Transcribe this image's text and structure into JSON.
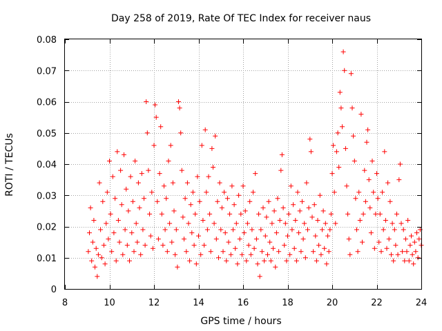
{
  "chart_data": {
    "type": "scatter",
    "title": "Day 258 of 2019, Rate Of TEC Index for receiver naus",
    "xlabel": "GPS time / hours",
    "ylabel": "ROTI / TECUs",
    "xlim": [
      8,
      24
    ],
    "ylim": [
      0,
      0.08
    ],
    "xticks": [
      8,
      10,
      12,
      14,
      16,
      18,
      20,
      22,
      24
    ],
    "xtick_labels": [
      "8",
      "10",
      "12",
      "14",
      "16",
      "18",
      "20",
      "22",
      "24"
    ],
    "yticks": [
      0,
      0.01,
      0.02,
      0.03,
      0.04,
      0.05,
      0.06,
      0.07,
      0.08
    ],
    "ytick_labels": [
      "0",
      "0.01",
      "0.02",
      "0.03",
      "0.04",
      "0.05",
      "0.06",
      "0.07",
      "0.08"
    ],
    "grid": true,
    "marker": "plus",
    "color": "#ff0000",
    "series": [
      {
        "name": "naus",
        "points": [
          [
            9.05,
            0.012
          ],
          [
            9.1,
            0.018
          ],
          [
            9.15,
            0.026
          ],
          [
            9.2,
            0.009
          ],
          [
            9.25,
            0.015
          ],
          [
            9.3,
            0.022
          ],
          [
            9.35,
            0.007
          ],
          [
            9.4,
            0.013
          ],
          [
            9.45,
            0.004
          ],
          [
            9.5,
            0.011
          ],
          [
            9.55,
            0.034
          ],
          [
            9.6,
            0.019
          ],
          [
            9.65,
            0.01
          ],
          [
            9.7,
            0.028
          ],
          [
            9.75,
            0.014
          ],
          [
            9.8,
            0.008
          ],
          [
            9.85,
            0.021
          ],
          [
            9.9,
            0.031
          ],
          [
            9.95,
            0.016
          ],
          [
            10.0,
            0.041
          ],
          [
            10.05,
            0.024
          ],
          [
            10.1,
            0.012
          ],
          [
            10.15,
            0.036
          ],
          [
            10.2,
            0.018
          ],
          [
            10.25,
            0.029
          ],
          [
            10.3,
            0.009
          ],
          [
            10.35,
            0.044
          ],
          [
            10.4,
            0.022
          ],
          [
            10.45,
            0.015
          ],
          [
            10.5,
            0.038
          ],
          [
            10.55,
            0.027
          ],
          [
            10.6,
            0.011
          ],
          [
            10.65,
            0.043
          ],
          [
            10.7,
            0.019
          ],
          [
            10.75,
            0.032
          ],
          [
            10.8,
            0.014
          ],
          [
            10.85,
            0.025
          ],
          [
            10.9,
            0.009
          ],
          [
            10.95,
            0.036
          ],
          [
            11.0,
            0.018
          ],
          [
            11.05,
            0.028
          ],
          [
            11.1,
            0.012
          ],
          [
            11.15,
            0.041
          ],
          [
            11.2,
            0.021
          ],
          [
            11.25,
            0.015
          ],
          [
            11.3,
            0.034
          ],
          [
            11.35,
            0.026
          ],
          [
            11.4,
            0.011
          ],
          [
            11.45,
            0.037
          ],
          [
            11.5,
            0.019
          ],
          [
            11.55,
            0.029
          ],
          [
            11.6,
            0.014
          ],
          [
            11.65,
            0.06
          ],
          [
            11.7,
            0.05
          ],
          [
            11.75,
            0.038
          ],
          [
            11.8,
            0.024
          ],
          [
            11.85,
            0.017
          ],
          [
            11.9,
            0.031
          ],
          [
            11.95,
            0.013
          ],
          [
            12.0,
            0.046
          ],
          [
            12.05,
            0.059
          ],
          [
            12.1,
            0.055
          ],
          [
            12.15,
            0.028
          ],
          [
            12.2,
            0.016
          ],
          [
            12.25,
            0.037
          ],
          [
            12.3,
            0.052
          ],
          [
            12.35,
            0.024
          ],
          [
            12.4,
            0.014
          ],
          [
            12.45,
            0.033
          ],
          [
            12.5,
            0.019
          ],
          [
            12.55,
            0.029
          ],
          [
            12.6,
            0.012
          ],
          [
            12.65,
            0.041
          ],
          [
            12.7,
            0.021
          ],
          [
            12.75,
            0.046
          ],
          [
            12.8,
            0.015
          ],
          [
            12.85,
            0.034
          ],
          [
            12.9,
            0.025
          ],
          [
            12.95,
            0.011
          ],
          [
            13.0,
            0.019
          ],
          [
            13.05,
            0.007
          ],
          [
            13.1,
            0.06
          ],
          [
            13.15,
            0.058
          ],
          [
            13.2,
            0.05
          ],
          [
            13.25,
            0.038
          ],
          [
            13.3,
            0.023
          ],
          [
            13.35,
            0.016
          ],
          [
            13.4,
            0.029
          ],
          [
            13.45,
            0.012
          ],
          [
            13.5,
            0.034
          ],
          [
            13.55,
            0.021
          ],
          [
            13.6,
            0.009
          ],
          [
            13.65,
            0.027
          ],
          [
            13.7,
            0.018
          ],
          [
            13.75,
            0.031
          ],
          [
            13.8,
            0.014
          ],
          [
            13.85,
            0.024
          ],
          [
            13.9,
            0.008
          ],
          [
            13.95,
            0.036
          ],
          [
            14.0,
            0.017
          ],
          [
            14.05,
            0.028
          ],
          [
            14.1,
            0.011
          ],
          [
            14.15,
            0.046
          ],
          [
            14.2,
            0.022
          ],
          [
            14.25,
            0.014
          ],
          [
            14.3,
            0.051
          ],
          [
            14.35,
            0.031
          ],
          [
            14.4,
            0.019
          ],
          [
            14.45,
            0.036
          ],
          [
            14.5,
            0.024
          ],
          [
            14.55,
            0.012
          ],
          [
            14.6,
            0.045
          ],
          [
            14.65,
            0.039
          ],
          [
            14.7,
            0.021
          ],
          [
            14.75,
            0.049
          ],
          [
            14.8,
            0.016
          ],
          [
            14.85,
            0.028
          ],
          [
            14.9,
            0.01
          ],
          [
            14.95,
            0.034
          ],
          [
            15.0,
            0.019
          ],
          [
            15.05,
            0.026
          ],
          [
            15.1,
            0.012
          ],
          [
            15.15,
            0.031
          ],
          [
            15.2,
            0.018
          ],
          [
            15.25,
            0.009
          ],
          [
            15.3,
            0.029
          ],
          [
            15.35,
            0.015
          ],
          [
            15.4,
            0.024
          ],
          [
            15.45,
            0.011
          ],
          [
            15.5,
            0.033
          ],
          [
            15.55,
            0.019
          ],
          [
            15.6,
            0.027
          ],
          [
            15.65,
            0.013
          ],
          [
            15.7,
            0.021
          ],
          [
            15.75,
            0.008
          ],
          [
            15.8,
            0.03
          ],
          [
            15.85,
            0.016
          ],
          [
            15.9,
            0.024
          ],
          [
            15.95,
            0.011
          ],
          [
            16.0,
            0.033
          ],
          [
            16.05,
            0.018
          ],
          [
            16.1,
            0.025
          ],
          [
            16.15,
            0.009
          ],
          [
            16.2,
            0.021
          ],
          [
            16.25,
            0.014
          ],
          [
            16.3,
            0.028
          ],
          [
            16.35,
            0.011
          ],
          [
            16.4,
            0.019
          ],
          [
            16.45,
            0.031
          ],
          [
            16.5,
            0.013
          ],
          [
            16.55,
            0.037
          ],
          [
            16.6,
            0.016
          ],
          [
            16.65,
            0.008
          ],
          [
            16.7,
            0.024
          ],
          [
            16.75,
            0.004
          ],
          [
            16.8,
            0.019
          ],
          [
            16.85,
            0.012
          ],
          [
            16.9,
            0.026
          ],
          [
            16.95,
            0.009
          ],
          [
            17.0,
            0.017
          ],
          [
            17.05,
            0.023
          ],
          [
            17.1,
            0.011
          ],
          [
            17.15,
            0.028
          ],
          [
            17.2,
            0.015
          ],
          [
            17.25,
            0.009
          ],
          [
            17.3,
            0.021
          ],
          [
            17.35,
            0.013
          ],
          [
            17.4,
            0.025
          ],
          [
            17.45,
            0.007
          ],
          [
            17.5,
            0.018
          ],
          [
            17.55,
            0.029
          ],
          [
            17.6,
            0.012
          ],
          [
            17.65,
            0.022
          ],
          [
            17.7,
            0.038
          ],
          [
            17.75,
            0.043
          ],
          [
            17.8,
            0.026
          ],
          [
            17.85,
            0.014
          ],
          [
            17.9,
            0.021
          ],
          [
            17.95,
            0.009
          ],
          [
            18.0,
            0.017
          ],
          [
            18.05,
            0.024
          ],
          [
            18.1,
            0.011
          ],
          [
            18.15,
            0.033
          ],
          [
            18.2,
            0.019
          ],
          [
            18.25,
            0.027
          ],
          [
            18.3,
            0.013
          ],
          [
            18.35,
            0.022
          ],
          [
            18.4,
            0.009
          ],
          [
            18.45,
            0.031
          ],
          [
            18.5,
            0.018
          ],
          [
            18.55,
            0.025
          ],
          [
            18.6,
            0.012
          ],
          [
            18.65,
            0.028
          ],
          [
            18.7,
            0.016
          ],
          [
            18.75,
            0.021
          ],
          [
            18.8,
            0.01
          ],
          [
            18.85,
            0.034
          ],
          [
            18.9,
            0.019
          ],
          [
            18.95,
            0.026
          ],
          [
            19.0,
            0.048
          ],
          [
            19.05,
            0.044
          ],
          [
            19.1,
            0.023
          ],
          [
            19.15,
            0.012
          ],
          [
            19.2,
            0.027
          ],
          [
            19.25,
            0.017
          ],
          [
            19.3,
            0.009
          ],
          [
            19.35,
            0.022
          ],
          [
            19.4,
            0.014
          ],
          [
            19.45,
            0.03
          ],
          [
            19.5,
            0.011
          ],
          [
            19.55,
            0.019
          ],
          [
            19.6,
            0.025
          ],
          [
            19.65,
            0.013
          ],
          [
            19.7,
            0.021
          ],
          [
            19.75,
            0.008
          ],
          [
            19.8,
            0.017
          ],
          [
            19.85,
            0.012
          ],
          [
            19.9,
            0.019
          ],
          [
            19.95,
            0.024
          ],
          [
            20.0,
            0.037
          ],
          [
            20.05,
            0.046
          ],
          [
            20.1,
            0.031
          ],
          [
            20.15,
            0.021
          ],
          [
            20.2,
            0.044
          ],
          [
            20.25,
            0.05
          ],
          [
            20.3,
            0.039
          ],
          [
            20.35,
            0.063
          ],
          [
            20.4,
            0.058
          ],
          [
            20.45,
            0.052
          ],
          [
            20.5,
            0.076
          ],
          [
            20.55,
            0.07
          ],
          [
            20.6,
            0.045
          ],
          [
            20.65,
            0.033
          ],
          [
            20.7,
            0.024
          ],
          [
            20.75,
            0.016
          ],
          [
            20.8,
            0.011
          ],
          [
            20.85,
            0.069
          ],
          [
            20.9,
            0.058
          ],
          [
            20.95,
            0.049
          ],
          [
            21.0,
            0.041
          ],
          [
            21.05,
            0.029
          ],
          [
            21.1,
            0.019
          ],
          [
            21.15,
            0.012
          ],
          [
            21.2,
            0.031
          ],
          [
            21.25,
            0.022
          ],
          [
            21.3,
            0.056
          ],
          [
            21.35,
            0.015
          ],
          [
            21.4,
            0.024
          ],
          [
            21.45,
            0.038
          ],
          [
            21.5,
            0.028
          ],
          [
            21.55,
            0.047
          ],
          [
            21.6,
            0.051
          ],
          [
            21.65,
            0.035
          ],
          [
            21.7,
            0.026
          ],
          [
            21.75,
            0.018
          ],
          [
            21.8,
            0.041
          ],
          [
            21.85,
            0.031
          ],
          [
            21.9,
            0.013
          ],
          [
            21.95,
            0.024
          ],
          [
            22.0,
            0.037
          ],
          [
            22.05,
            0.029
          ],
          [
            22.1,
            0.015
          ],
          [
            22.15,
            0.024
          ],
          [
            22.2,
            0.012
          ],
          [
            22.25,
            0.031
          ],
          [
            22.3,
            0.019
          ],
          [
            22.35,
            0.044
          ],
          [
            22.4,
            0.022
          ],
          [
            22.45,
            0.013
          ],
          [
            22.5,
            0.034
          ],
          [
            22.55,
            0.016
          ],
          [
            22.6,
            0.028
          ],
          [
            22.65,
            0.011
          ],
          [
            22.7,
            0.021
          ],
          [
            22.75,
            0.009
          ],
          [
            22.8,
            0.019
          ],
          [
            22.85,
            0.014
          ],
          [
            22.9,
            0.024
          ],
          [
            22.95,
            0.011
          ],
          [
            23.0,
            0.035
          ],
          [
            23.05,
            0.04
          ],
          [
            23.1,
            0.021
          ],
          [
            23.15,
            0.012
          ],
          [
            23.2,
            0.019
          ],
          [
            23.25,
            0.009
          ],
          [
            23.3,
            0.016
          ],
          [
            23.35,
            0.012
          ],
          [
            23.4,
            0.022
          ],
          [
            23.45,
            0.009
          ],
          [
            23.5,
            0.014
          ],
          [
            23.55,
            0.017
          ],
          [
            23.6,
            0.011
          ],
          [
            23.65,
            0.008
          ],
          [
            23.7,
            0.015
          ],
          [
            23.75,
            0.012
          ],
          [
            23.8,
            0.018
          ],
          [
            23.85,
            0.01
          ],
          [
            23.9,
            0.016
          ],
          [
            23.95,
            0.019
          ],
          [
            24.0,
            0.014
          ]
        ]
      }
    ]
  }
}
